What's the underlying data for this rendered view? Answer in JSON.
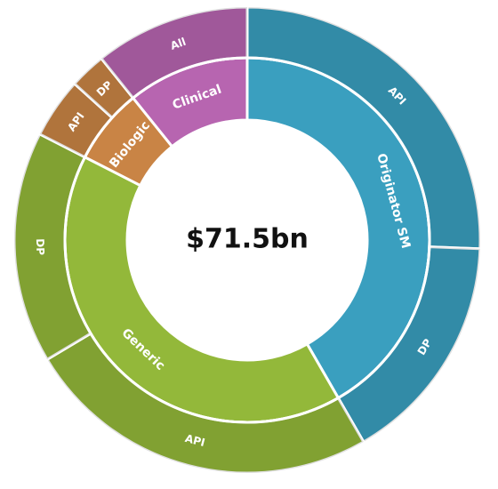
{
  "chart_data": {
    "type": "sunburst",
    "center_label": "$71.5bn",
    "nodes": [
      {
        "name": "Originator SM",
        "color": "#3a9fbf",
        "value": 29.8,
        "children": [
          {
            "name": "API",
            "value": 18.3
          },
          {
            "name": "DP",
            "value": 11.5
          }
        ]
      },
      {
        "name": "Generic",
        "color": "#93b83a",
        "value": 29.2,
        "children": [
          {
            "name": "API",
            "value": 17.7
          },
          {
            "name": "DP",
            "value": 11.5
          }
        ]
      },
      {
        "name": "Biologic",
        "color": "#c98445",
        "value": 4.8,
        "children": [
          {
            "name": "API",
            "value": 3.0
          },
          {
            "name": "DP",
            "value": 1.8
          }
        ]
      },
      {
        "name": "Clinical",
        "color": "#b765b0",
        "value": 7.7,
        "children": [
          {
            "name": "All",
            "value": 7.7
          }
        ]
      }
    ]
  }
}
